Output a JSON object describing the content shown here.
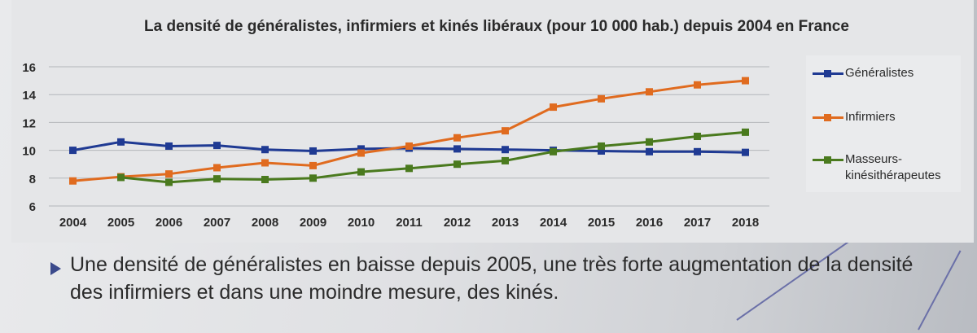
{
  "slide": {
    "bullet_text": "Une densité de généralistes en baisse depuis 2005, une très forte augmentation de la densité des infirmiers et dans une moindre mesure, des kinés."
  },
  "chart_data": {
    "type": "line",
    "title": "La densité de généralistes, infirmiers et kinés libéraux (pour 10 000 hab.) depuis 2004 en France",
    "x": [
      2004,
      2005,
      2006,
      2007,
      2008,
      2009,
      2010,
      2011,
      2012,
      2013,
      2014,
      2015,
      2016,
      2017,
      2018
    ],
    "y_ticks": [
      6,
      8,
      10,
      12,
      14,
      16
    ],
    "ylim": [
      6,
      16
    ],
    "grid": true,
    "legend_position": "right",
    "series": [
      {
        "name": "Généralistes",
        "color": "#1f3a93",
        "values": [
          10.0,
          10.6,
          10.3,
          10.35,
          10.05,
          9.95,
          10.1,
          10.15,
          10.1,
          10.05,
          10.0,
          9.95,
          9.9,
          9.9,
          9.85
        ]
      },
      {
        "name": "Infirmiers",
        "color": "#e06b1f",
        "values": [
          7.8,
          8.1,
          8.3,
          8.75,
          9.1,
          8.9,
          9.8,
          10.3,
          10.9,
          11.4,
          13.1,
          13.7,
          14.2,
          14.7,
          15.0
        ]
      },
      {
        "name": "Masseurs-kinésithérapeutes",
        "color": "#4a7a1e",
        "values": [
          null,
          8.05,
          7.7,
          7.95,
          7.9,
          8.0,
          8.45,
          8.7,
          9.0,
          9.25,
          9.9,
          10.3,
          10.6,
          11.0,
          11.3
        ]
      }
    ]
  }
}
